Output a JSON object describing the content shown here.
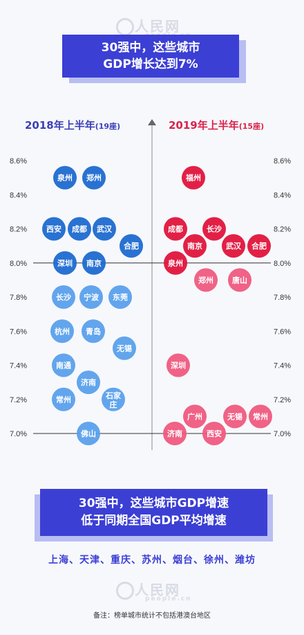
{
  "watermark": "人民网",
  "watermark_sub": "people.cn",
  "banner_top": {
    "line1": "30强中，这些城市",
    "line2": "GDP增长达到7%"
  },
  "header_left": {
    "main": "2018年上半年",
    "sub": "(19座)"
  },
  "header_right": {
    "main": "2019年上半年",
    "sub": "(15座)"
  },
  "banner_bottom": {
    "line1": "30强中，这些城市GDP增速",
    "line2": "低于同期全国GDP平均增速"
  },
  "cities_below": "上海、天津、重庆、苏州、烟台、徐州、潍坊",
  "note": "备注：榜单城市统计不包括港澳台地区",
  "colors": {
    "left_dark": "#1e6ad0",
    "left_light": "#5aa0ec",
    "right_dark": "#e0143c",
    "right_light": "#ef5a80"
  },
  "chart_data": {
    "type": "scatter",
    "y_ticks": [
      "8.6%",
      "8.4%",
      "8.2%",
      "8.0%",
      "7.8%",
      "7.6%",
      "7.4%",
      "7.2%",
      "7.0%"
    ],
    "ylim": [
      7.0,
      8.6
    ],
    "series": [
      {
        "name": "2018年上半年",
        "points": [
          {
            "city": "泉州",
            "y": 8.5
          },
          {
            "city": "郑州",
            "y": 8.5
          },
          {
            "city": "西安",
            "y": 8.2
          },
          {
            "city": "成都",
            "y": 8.2
          },
          {
            "city": "武汉",
            "y": 8.2
          },
          {
            "city": "合肥",
            "y": 8.1
          },
          {
            "city": "深圳",
            "y": 8.0
          },
          {
            "city": "南京",
            "y": 8.0
          },
          {
            "city": "长沙",
            "y": 7.8
          },
          {
            "city": "宁波",
            "y": 7.8
          },
          {
            "city": "东莞",
            "y": 7.8
          },
          {
            "city": "杭州",
            "y": 7.6
          },
          {
            "city": "青岛",
            "y": 7.6
          },
          {
            "city": "无锡",
            "y": 7.5
          },
          {
            "city": "南通",
            "y": 7.4
          },
          {
            "city": "济南",
            "y": 7.3
          },
          {
            "city": "常州",
            "y": 7.2
          },
          {
            "city": "石家庄",
            "y": 7.2
          },
          {
            "city": "佛山",
            "y": 7.0
          }
        ]
      },
      {
        "name": "2019年上半年",
        "points": [
          {
            "city": "福州",
            "y": 8.5
          },
          {
            "city": "成都",
            "y": 8.2
          },
          {
            "city": "长沙",
            "y": 8.2
          },
          {
            "city": "南京",
            "y": 8.1
          },
          {
            "city": "武汉",
            "y": 8.1
          },
          {
            "city": "合肥",
            "y": 8.1
          },
          {
            "city": "泉州",
            "y": 8.0
          },
          {
            "city": "郑州",
            "y": 7.9
          },
          {
            "city": "唐山",
            "y": 7.9
          },
          {
            "city": "深圳",
            "y": 7.4
          },
          {
            "city": "广州",
            "y": 7.1
          },
          {
            "city": "无锡",
            "y": 7.1
          },
          {
            "city": "常州",
            "y": 7.1
          },
          {
            "city": "济南",
            "y": 7.0
          },
          {
            "city": "西安",
            "y": 7.0
          }
        ]
      }
    ]
  }
}
